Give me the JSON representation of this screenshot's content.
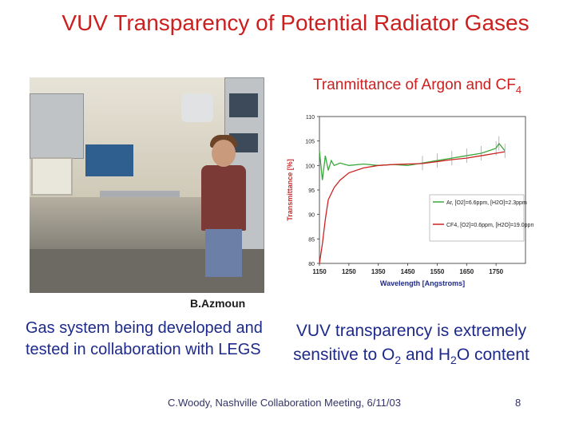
{
  "slide": {
    "title": "VUV Transparency of Potential Radiator Gases",
    "chart_caption_main": "Tranmittance of Argon and CF",
    "chart_caption_sub": "4",
    "photo_credit": "B.Azmoun",
    "left_text": "Gas system being developed and tested in collaboration with LEGS",
    "right_text_a": "VUV transparency is extremely sensitive to O",
    "right_text_sub1": "2",
    "right_text_b": " and H",
    "right_text_sub2": "2",
    "right_text_c": "O content",
    "footer": "C.Woody, Nashville Collaboration Meeting, 6/11/03",
    "page_number": "8"
  },
  "colors": {
    "title_red": "#cc1f1f",
    "body_blue": "#1e2a8a",
    "axis_label_red": "#cc2a2a",
    "argon_green": "#3aa83a",
    "cf4_red": "#cc2222"
  },
  "chart_data": {
    "type": "line",
    "xlabel": "Wavelength [Angstroms]",
    "ylabel": "Transmittance [%]",
    "xlim": [
      1150,
      1850
    ],
    "ylim": [
      80,
      110
    ],
    "xticks": [
      "1150",
      "1250",
      "1350",
      "1450",
      "1550",
      "1650",
      "1750"
    ],
    "xtick_values": [
      1150,
      1250,
      1350,
      1450,
      1550,
      1650,
      1750
    ],
    "yticks": [
      "80",
      "85",
      "90",
      "95",
      "100",
      "105",
      "110"
    ],
    "ytick_values": [
      80,
      85,
      90,
      95,
      100,
      105,
      110
    ],
    "legend_position": "center-right",
    "series": [
      {
        "name": "Ar, [O2]=6.6ppm, [H2O]=2.3ppm",
        "color": "#3aa83a",
        "x": [
          1150,
          1160,
          1170,
          1180,
          1190,
          1200,
          1220,
          1250,
          1300,
          1350,
          1400,
          1450,
          1500,
          1550,
          1600,
          1650,
          1700,
          1750,
          1760,
          1780
        ],
        "y": [
          103,
          97,
          102,
          99,
          101,
          100,
          100.5,
          100,
          100.3,
          100,
          100.2,
          100,
          100.5,
          101,
          101.5,
          102,
          102.5,
          103.5,
          104.5,
          103
        ]
      },
      {
        "name": "CF4, [O2]=0.6ppm, [H2O]=19.0ppm",
        "color": "#cc2222",
        "x": [
          1150,
          1160,
          1170,
          1180,
          1200,
          1220,
          1250,
          1300,
          1350,
          1400,
          1450,
          1500,
          1550,
          1600,
          1650,
          1700,
          1750,
          1780
        ],
        "y": [
          80,
          84,
          89,
          93,
          95.5,
          97,
          98.5,
          99.5,
          100,
          100.2,
          100.3,
          100.4,
          100.8,
          101.2,
          101.5,
          102,
          102.5,
          102.8
        ]
      }
    ]
  }
}
